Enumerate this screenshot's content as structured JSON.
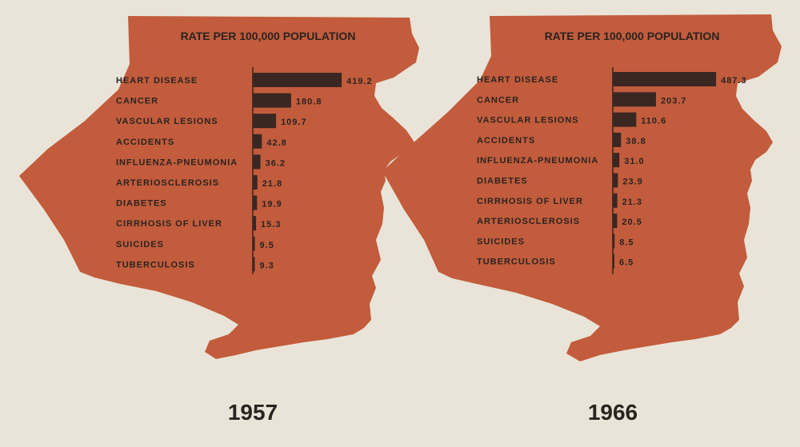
{
  "chart_data": [
    {
      "type": "bar",
      "orientation": "horizontal",
      "title": "RATE PER 100,000 POPULATION",
      "year": "1957",
      "categories": [
        "HEART DISEASE",
        "CANCER",
        "VASCULAR LESIONS",
        "ACCIDENTS",
        "INFLUENZA-PNEUMONIA",
        "ARTERIOSCLEROSIS",
        "DIABETES",
        "CIRRHOSIS OF LIVER",
        "SUICIDES",
        "TUBERCULOSIS"
      ],
      "values": [
        419.2,
        180.8,
        109.7,
        42.8,
        36.2,
        21.8,
        19.9,
        15.3,
        9.5,
        9.3
      ],
      "value_labels": [
        "419.2",
        "180.8",
        "109.7",
        "42.8",
        "36.2",
        "21.8",
        "19.9",
        "15.3",
        "9.5",
        "9.3"
      ],
      "grid": false
    },
    {
      "type": "bar",
      "orientation": "horizontal",
      "title": "RATE PER 100,000 POPULATION",
      "year": "1966",
      "categories": [
        "HEART DISEASE",
        "CANCER",
        "VASCULAR LESIONS",
        "ACCIDENTS",
        "INFLUENZA-PNEUMONIA",
        "DIABETES",
        "CIRRHOSIS OF LIVER",
        "ARTERIOSCLEROSIS",
        "SUICIDES",
        "TUBERCULOSIS"
      ],
      "values": [
        487.3,
        203.7,
        110.6,
        38.8,
        31.0,
        23.9,
        21.3,
        20.5,
        8.5,
        6.5
      ],
      "value_labels": [
        "487.3",
        "203.7",
        "110.6",
        "38.8",
        "31.0",
        "23.9",
        "21.3",
        "20.5",
        "8.5",
        "6.5"
      ],
      "grid": false
    }
  ],
  "colors": {
    "map_fill": "#c25c3c",
    "bar": "#3a2722",
    "text": "#2a2320",
    "background": "#e9e4d7"
  }
}
